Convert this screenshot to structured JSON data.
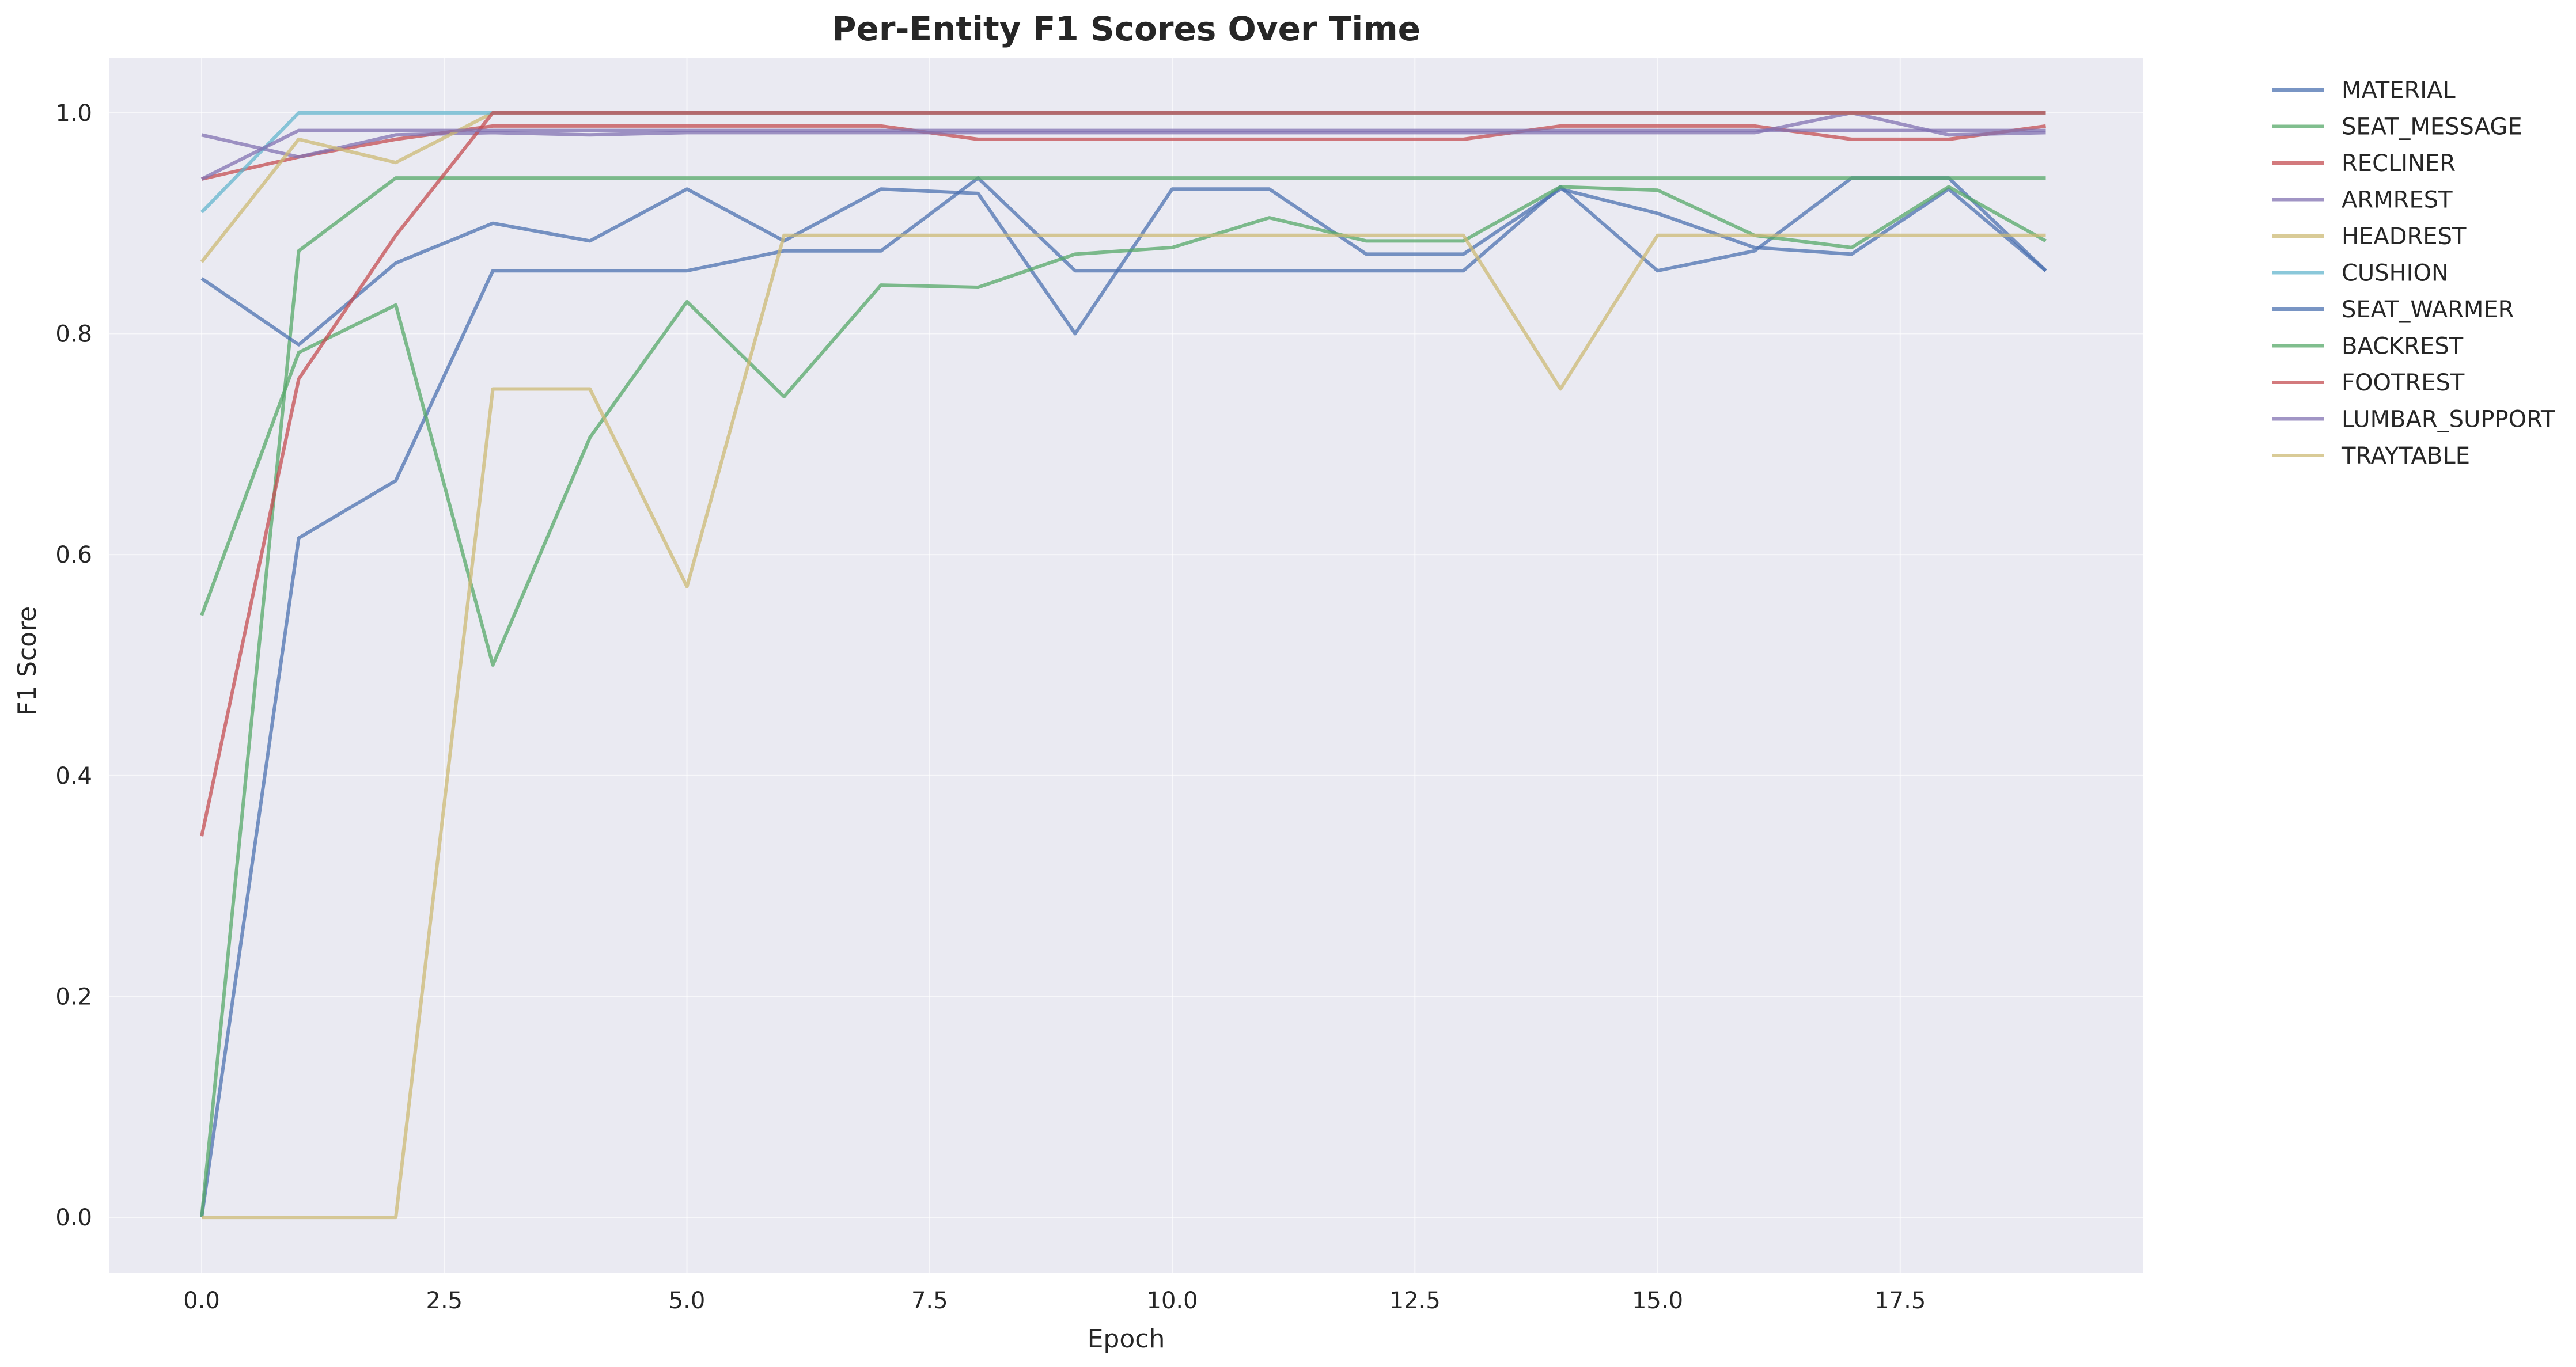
{
  "chart_data": {
    "type": "line",
    "title": "Per-Entity F1 Scores Over Time",
    "xlabel": "Epoch",
    "ylabel": "F1 Score",
    "xlim": [
      -0.95,
      20.0
    ],
    "ylim": [
      -0.05,
      1.05
    ],
    "grid": true,
    "legend_position": "outside-right",
    "xticks": [
      0.0,
      2.5,
      5.0,
      7.5,
      10.0,
      12.5,
      15.0,
      17.5
    ],
    "xtick_labels": [
      "0.0",
      "2.5",
      "5.0",
      "7.5",
      "10.0",
      "12.5",
      "15.0",
      "17.5"
    ],
    "yticks": [
      0.0,
      0.2,
      0.4,
      0.6,
      0.8,
      1.0
    ],
    "ytick_labels": [
      "0.0",
      "0.2",
      "0.4",
      "0.6",
      "0.8",
      "1.0"
    ],
    "x": [
      0,
      1,
      2,
      3,
      4,
      5,
      6,
      7,
      8,
      9,
      10,
      11,
      12,
      13,
      14,
      15,
      16,
      17,
      18,
      19
    ],
    "series": [
      {
        "name": "MATERIAL",
        "color": "#4c72b0",
        "values": [
          0.0,
          0.615,
          0.667,
          0.857,
          0.857,
          0.857,
          0.875,
          0.875,
          0.941,
          0.857,
          0.857,
          0.857,
          0.857,
          0.857,
          0.933,
          0.857,
          0.875,
          0.941,
          0.941,
          0.857
        ]
      },
      {
        "name": "SEAT_MESSAGE",
        "color": "#55a868",
        "values": [
          0.0,
          0.875,
          0.941,
          0.941,
          0.941,
          0.941,
          0.941,
          0.941,
          0.941,
          0.941,
          0.941,
          0.941,
          0.941,
          0.941,
          0.941,
          0.941,
          0.941,
          0.941,
          0.941,
          0.941
        ]
      },
      {
        "name": "RECLINER",
        "color": "#c44e52",
        "values": [
          0.94,
          0.96,
          0.976,
          0.988,
          0.988,
          0.988,
          0.988,
          0.988,
          0.976,
          0.976,
          0.976,
          0.976,
          0.976,
          0.976,
          0.988,
          0.988,
          0.988,
          0.976,
          0.976,
          0.988
        ]
      },
      {
        "name": "ARMREST",
        "color": "#8172b2",
        "values": [
          0.98,
          0.96,
          0.98,
          0.982,
          0.98,
          0.982,
          0.982,
          0.982,
          0.982,
          0.982,
          0.982,
          0.982,
          0.982,
          0.982,
          0.982,
          0.982,
          0.982,
          1.0,
          0.98,
          0.982
        ]
      },
      {
        "name": "HEADREST",
        "color": "#ccb974",
        "values": [
          0.865,
          0.976,
          0.955,
          1.0,
          1.0,
          1.0,
          1.0,
          1.0,
          1.0,
          1.0,
          1.0,
          1.0,
          1.0,
          1.0,
          1.0,
          1.0,
          1.0,
          1.0,
          1.0,
          1.0
        ]
      },
      {
        "name": "CUSHION",
        "color": "#64b5cd",
        "values": [
          0.91,
          1.0,
          1.0,
          1.0,
          1.0,
          1.0,
          1.0,
          1.0,
          1.0,
          1.0,
          1.0,
          1.0,
          1.0,
          1.0,
          1.0,
          1.0,
          1.0,
          1.0,
          1.0,
          1.0
        ]
      },
      {
        "name": "SEAT_WARMER",
        "color": "#4c72b0",
        "values": [
          0.85,
          0.79,
          0.864,
          0.9,
          0.884,
          0.931,
          0.884,
          0.931,
          0.927,
          0.8,
          0.931,
          0.931,
          0.872,
          0.872,
          0.931,
          0.909,
          0.878,
          0.872,
          0.931,
          0.857
        ]
      },
      {
        "name": "BACKREST",
        "color": "#55a868",
        "values": [
          0.545,
          0.783,
          0.826,
          0.5,
          0.706,
          0.829,
          0.743,
          0.844,
          0.842,
          0.872,
          0.878,
          0.905,
          0.884,
          0.884,
          0.933,
          0.93,
          0.889,
          0.878,
          0.933,
          0.884
        ]
      },
      {
        "name": "FOOTREST",
        "color": "#c44e52",
        "values": [
          0.345,
          0.759,
          0.889,
          1.0,
          1.0,
          1.0,
          1.0,
          1.0,
          1.0,
          1.0,
          1.0,
          1.0,
          1.0,
          1.0,
          1.0,
          1.0,
          1.0,
          1.0,
          1.0,
          1.0
        ]
      },
      {
        "name": "LUMBAR_SUPPORT",
        "color": "#8172b2",
        "values": [
          0.94,
          0.984,
          0.984,
          0.984,
          0.984,
          0.984,
          0.984,
          0.984,
          0.984,
          0.984,
          0.984,
          0.984,
          0.984,
          0.984,
          0.984,
          0.984,
          0.984,
          0.984,
          0.984,
          0.984
        ]
      },
      {
        "name": "TRAYTABLE",
        "color": "#ccb974",
        "values": [
          0.0,
          0.0,
          0.0,
          0.75,
          0.75,
          0.571,
          0.889,
          0.889,
          0.889,
          0.889,
          0.889,
          0.889,
          0.889,
          0.889,
          0.75,
          0.889,
          0.889,
          0.889,
          0.889,
          0.889
        ]
      }
    ]
  }
}
